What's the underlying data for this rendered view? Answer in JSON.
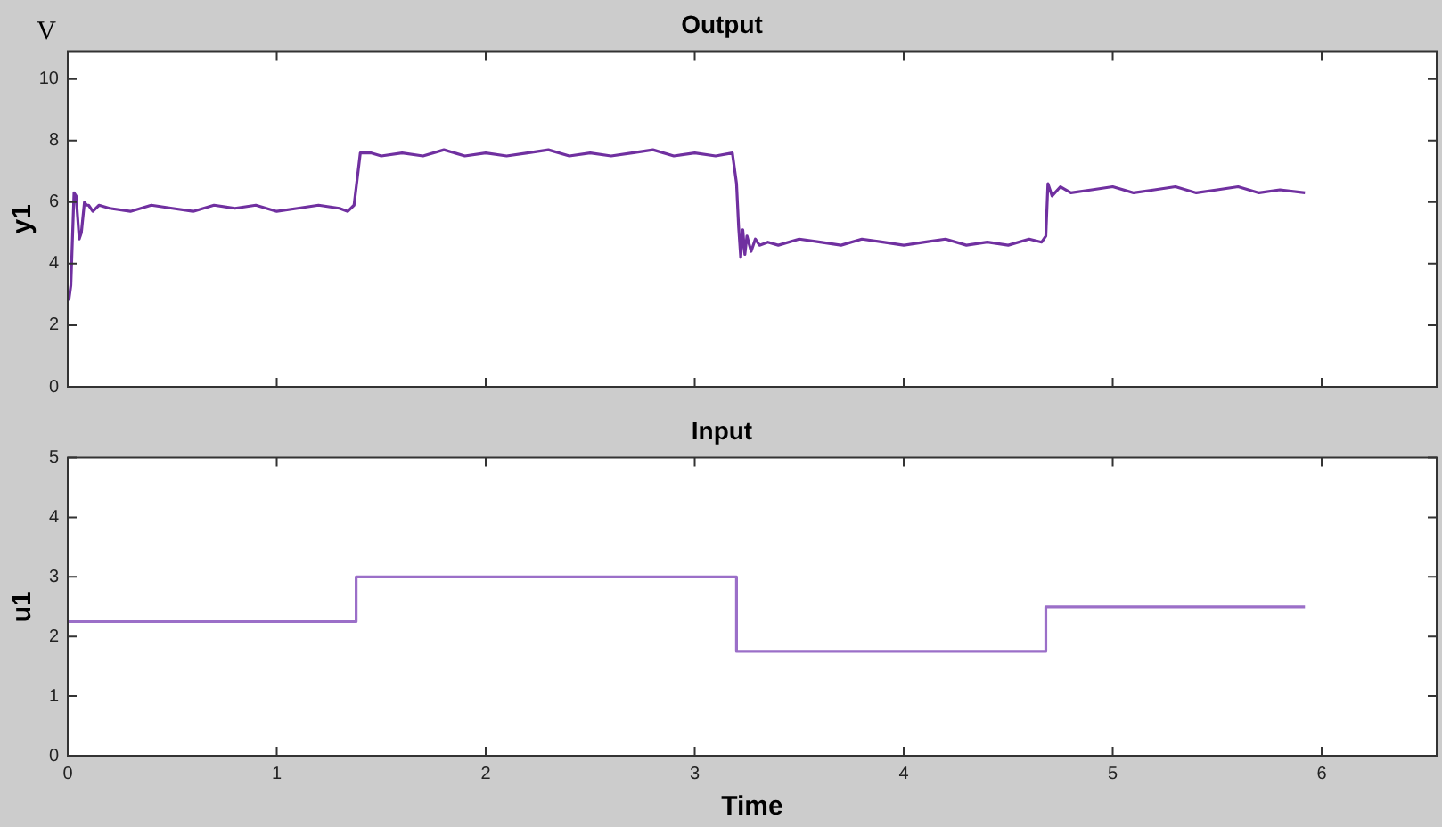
{
  "chart_data": [
    {
      "type": "line",
      "title": "Output",
      "ylabel": "y1",
      "annotations": [
        "V"
      ],
      "tick_labels": "y",
      "marker": "none",
      "line_style": "solid",
      "legend": false,
      "xlim": [
        0,
        6.55
      ],
      "xticks": [
        0,
        1,
        2,
        3,
        4,
        5,
        6
      ],
      "ylim": [
        0,
        10.9
      ],
      "yticks": [
        0,
        2,
        4,
        6,
        8,
        10
      ],
      "series": [
        {
          "color": "#7030a0",
          "x": [
            0.005,
            0.015,
            0.03,
            0.04,
            0.055,
            0.065,
            0.08,
            0.09,
            0.1,
            0.12,
            0.15,
            0.2,
            0.3,
            0.4,
            0.5,
            0.6,
            0.7,
            0.8,
            0.9,
            1.0,
            1.1,
            1.2,
            1.3,
            1.34,
            1.37,
            1.4,
            1.43,
            1.45,
            1.5,
            1.6,
            1.7,
            1.8,
            1.9,
            2.0,
            2.1,
            2.2,
            2.3,
            2.4,
            2.5,
            2.6,
            2.7,
            2.8,
            2.9,
            3.0,
            3.1,
            3.18,
            3.2,
            3.21,
            3.22,
            3.23,
            3.24,
            3.25,
            3.27,
            3.29,
            3.31,
            3.35,
            3.4,
            3.5,
            3.6,
            3.7,
            3.8,
            3.9,
            4.0,
            4.1,
            4.2,
            4.3,
            4.4,
            4.5,
            4.6,
            4.66,
            4.68,
            4.69,
            4.71,
            4.75,
            4.8,
            4.9,
            5.0,
            5.1,
            5.2,
            5.3,
            5.4,
            5.5,
            5.6,
            5.7,
            5.8,
            5.92
          ],
          "values": [
            2.8,
            3.3,
            6.3,
            6.2,
            4.8,
            5.0,
            6.0,
            5.9,
            5.9,
            5.7,
            5.9,
            5.8,
            5.7,
            5.9,
            5.8,
            5.7,
            5.9,
            5.8,
            5.9,
            5.7,
            5.8,
            5.9,
            5.8,
            5.7,
            5.9,
            7.6,
            7.6,
            7.6,
            7.5,
            7.6,
            7.5,
            7.7,
            7.5,
            7.6,
            7.5,
            7.6,
            7.7,
            7.5,
            7.6,
            7.5,
            7.6,
            7.7,
            7.5,
            7.6,
            7.5,
            7.6,
            6.6,
            5.2,
            4.2,
            5.1,
            4.3,
            4.9,
            4.4,
            4.8,
            4.6,
            4.7,
            4.6,
            4.8,
            4.7,
            4.6,
            4.8,
            4.7,
            4.6,
            4.7,
            4.8,
            4.6,
            4.7,
            4.6,
            4.8,
            4.7,
            4.9,
            6.6,
            6.2,
            6.5,
            6.3,
            6.4,
            6.5,
            6.3,
            6.4,
            6.5,
            6.3,
            6.4,
            6.5,
            6.3,
            6.4,
            6.3
          ]
        }
      ]
    },
    {
      "type": "step",
      "title": "Input",
      "xlabel": "Time",
      "ylabel": "u1",
      "marker": "none",
      "line_style": "solid",
      "legend": false,
      "xlim": [
        0,
        6.55
      ],
      "xticks": [
        0,
        1,
        2,
        3,
        4,
        5,
        6
      ],
      "ylim": [
        0,
        5
      ],
      "yticks": [
        0,
        1,
        2,
        3,
        4,
        5
      ],
      "series": [
        {
          "color": "#9b6fc8",
          "x": [
            0,
            1.38,
            3.2,
            4.68,
            5.92
          ],
          "values": [
            2.25,
            3,
            1.75,
            2.5,
            2.5
          ]
        }
      ]
    }
  ]
}
